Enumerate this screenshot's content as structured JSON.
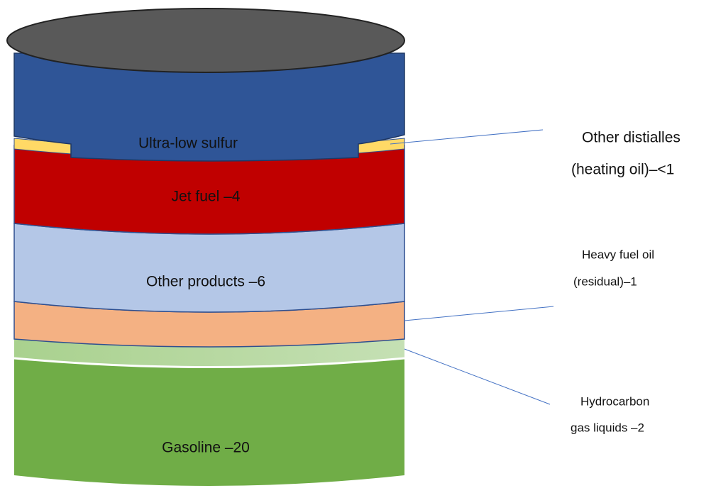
{
  "layers": [
    {
      "label": "Ultra-low sulfur"
    },
    {
      "label": "Jet fuel –4"
    },
    {
      "label": "Other products –6"
    },
    {
      "label": "Gasoline –20"
    }
  ],
  "callouts": [
    {
      "lines": [
        "Other distialles",
        "(heating oil)–<1"
      ]
    },
    {
      "lines": [
        "Heavy fuel oil",
        "(residual)–1"
      ]
    },
    {
      "lines": [
        "Hydrocarbon",
        "gas liquids –2"
      ]
    }
  ]
}
